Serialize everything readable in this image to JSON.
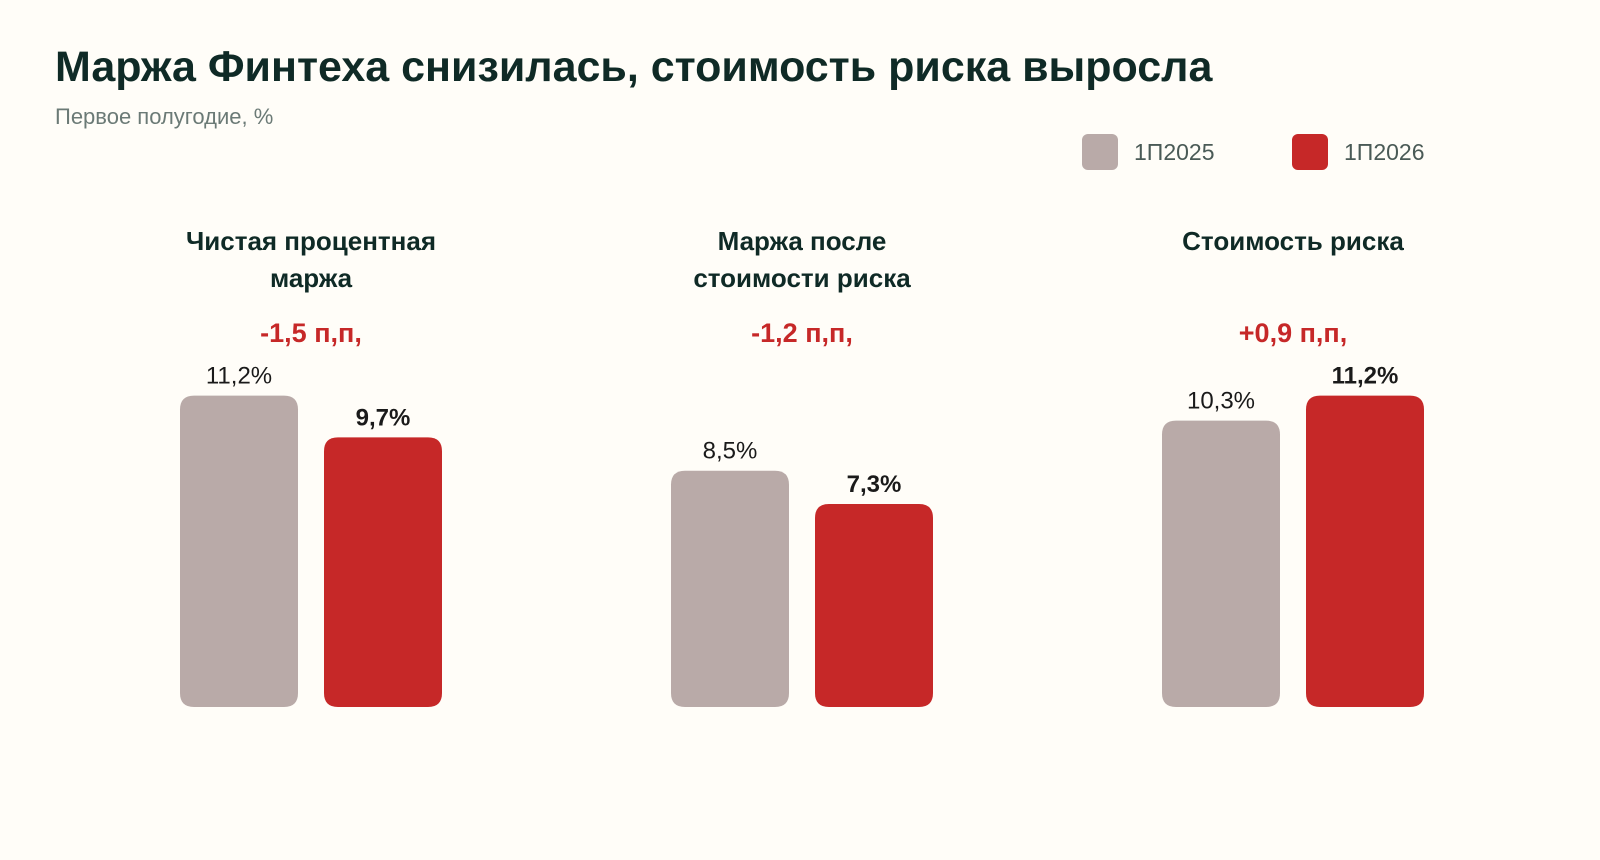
{
  "title": "Маржа Финтеха снизилась, стоимость риска выросла",
  "subtitle": "Первое полугодие, %",
  "colors": {
    "prev": "#b9aaa8",
    "curr": "#c62828",
    "delta": "#c62828",
    "label": "#1a1a1a",
    "category": "#0f2a26"
  },
  "legend": [
    {
      "label": "1П2025",
      "color": "#b9aaa8"
    },
    {
      "label": "1П2026",
      "color": "#c62828"
    }
  ],
  "chart_data": {
    "type": "bar",
    "categories": [
      {
        "lines": [
          "Чистая процентная",
          "маржа"
        ]
      },
      {
        "lines": [
          "Маржа после",
          "стоимости риска"
        ]
      },
      {
        "lines": [
          "Стоимость риска"
        ]
      }
    ],
    "series": [
      {
        "name": "1П2025",
        "values": [
          11.2,
          8.5,
          10.3
        ],
        "labels": [
          "11,2%",
          "8,5%",
          "10,3%"
        ]
      },
      {
        "name": "1П2026",
        "values": [
          9.7,
          7.3,
          11.2
        ],
        "labels": [
          "9,7%",
          "7,3%",
          "11,2%"
        ]
      }
    ],
    "deltas": [
      "-1,5 п,п,",
      "-1,2 п,п,",
      "+0,9 п,п,"
    ],
    "legend_position": "top-right",
    "grid": false
  }
}
